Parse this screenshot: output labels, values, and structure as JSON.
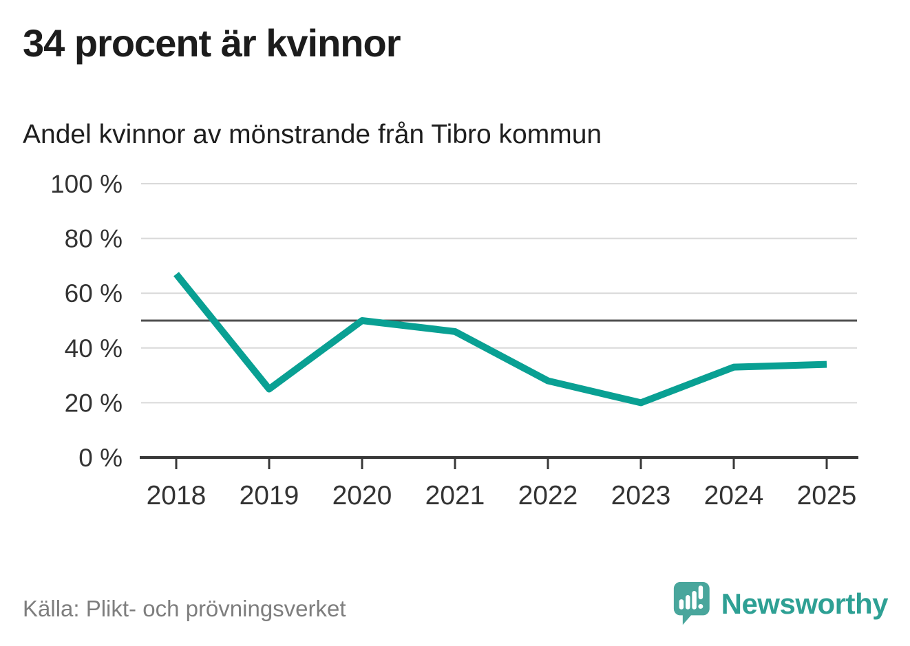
{
  "header": {
    "title": "34 procent är kvinnor",
    "subtitle": "Andel kvinnor av mönstrande från Tibro kommun"
  },
  "footer": {
    "source": "Källa: Plikt- och prövningsverket",
    "brand": {
      "name": "Newsworthy",
      "icon": "newsworthy-speech-bubble-chart-icon"
    }
  },
  "colors": {
    "line": "#09a093",
    "reference_line": "#4f4f4f",
    "gridline": "#d9d9d9",
    "axis": "#383838",
    "tick_text": "#333333",
    "title_text": "#1c1c1c",
    "source_text": "#7e7e7e",
    "brand_teal": "#2ea094",
    "logo_bubble": "#49a69c",
    "background": "#ffffff"
  },
  "chart_data": {
    "type": "line",
    "title": "34 procent är kvinnor",
    "subtitle": "Andel kvinnor av mönstrande från Tibro kommun",
    "categories": [
      "2018",
      "2019",
      "2020",
      "2021",
      "2022",
      "2023",
      "2024",
      "2025"
    ],
    "series": [
      {
        "name": "Andel kvinnor av mönstrande från Tibro kommun",
        "values": [
          67,
          25,
          50,
          46,
          28,
          20,
          33,
          34
        ]
      }
    ],
    "xlabel": "",
    "ylabel": "",
    "ylim": [
      0,
      100
    ],
    "y_ticks": [
      0,
      20,
      40,
      60,
      80,
      100
    ],
    "y_tick_labels": [
      "0 %",
      "20 %",
      "40 %",
      "60 %",
      "80 %",
      "100 %"
    ],
    "y_tick_suffix": " %",
    "reference_line": 50,
    "grid": "horizontal",
    "legend": "none",
    "unit": "%"
  }
}
